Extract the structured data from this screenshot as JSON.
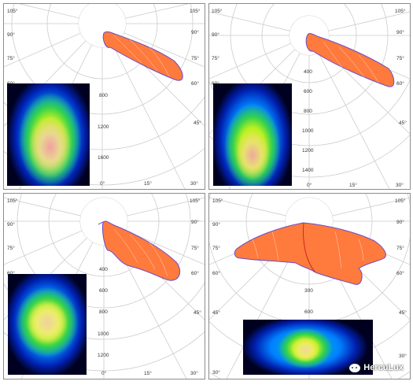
{
  "panels": [
    {
      "id": "p1",
      "angle_labels_left": [
        "105°",
        "90°",
        "75°",
        "60°"
      ],
      "angle_labels_right": [
        "105°",
        "90°",
        "75°",
        "60°",
        "45°"
      ],
      "bottom_labels": [
        "0°",
        "15°",
        "30°"
      ],
      "radial_labels": [
        "800",
        "1200",
        "1600"
      ]
    },
    {
      "id": "p2",
      "angle_labels_left": [
        "105°",
        "90°",
        "75°",
        "60°"
      ],
      "angle_labels_right": [
        "105°",
        "90°",
        "75°",
        "60°",
        "45°"
      ],
      "bottom_labels": [
        "0°",
        "15°",
        "30°"
      ],
      "radial_labels": [
        "400",
        "600",
        "800",
        "1000",
        "1200",
        "1400"
      ]
    },
    {
      "id": "p3",
      "angle_labels_left": [
        "105°",
        "90°",
        "75°",
        "60°"
      ],
      "angle_labels_right": [
        "105°",
        "90°",
        "75°",
        "60°",
        "45°"
      ],
      "bottom_labels": [
        "0°",
        "15°",
        "30°"
      ],
      "radial_labels": [
        "400",
        "600",
        "800",
        "1000",
        "1200"
      ]
    },
    {
      "id": "p4",
      "angle_labels_left": [
        "105°",
        "90°",
        "75°",
        "60°",
        "45°",
        "30°"
      ],
      "angle_labels_right": [
        "105°",
        "90°",
        "75°",
        "60°",
        "45°",
        "30°"
      ],
      "bottom_labels": [],
      "radial_labels": [
        "300",
        "600"
      ]
    }
  ],
  "colors": {
    "lobe_fill": "#ff7a3d",
    "lobe_stroke": "#6a4cc8",
    "grid": "#cccccc"
  },
  "watermark": {
    "text": "HercuLux"
  }
}
